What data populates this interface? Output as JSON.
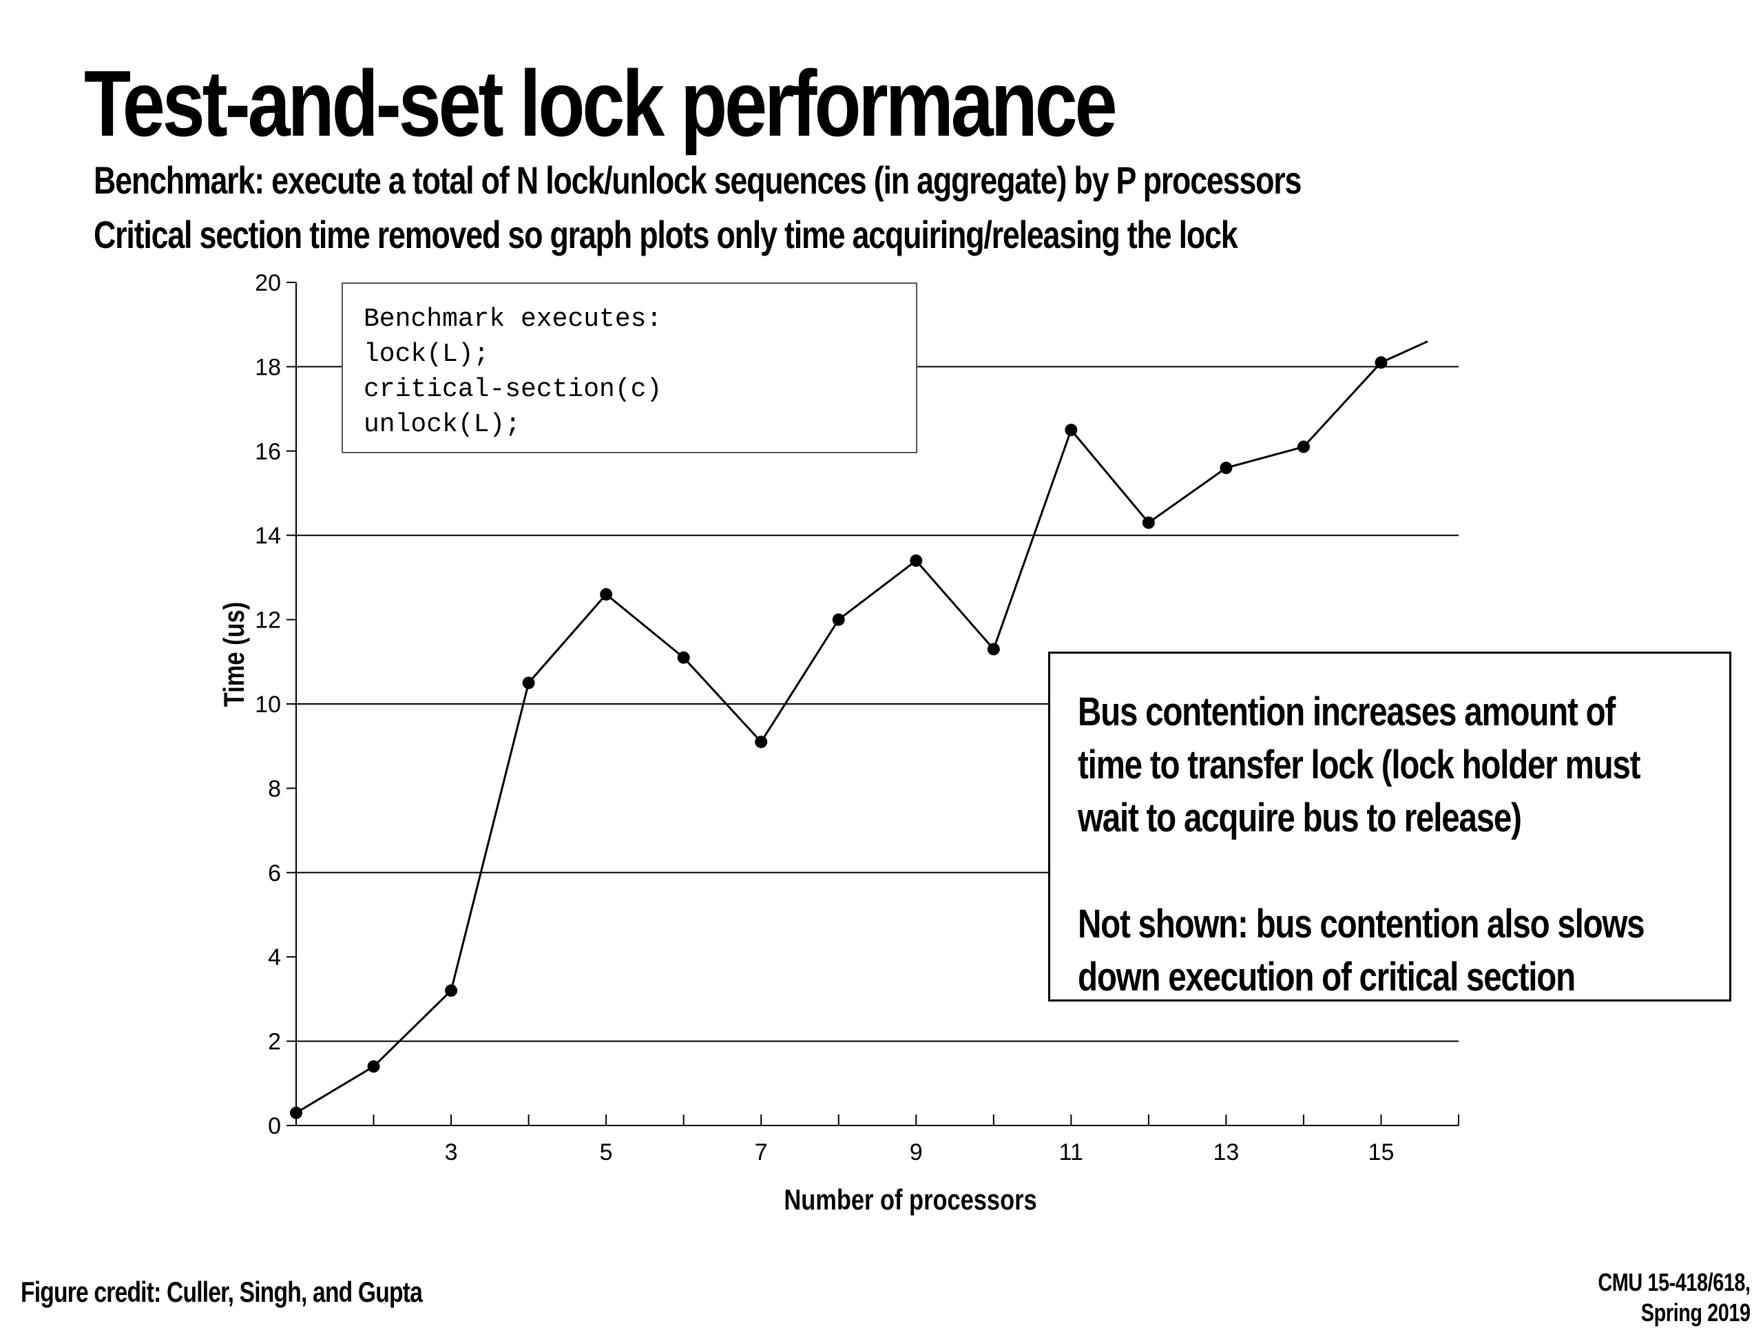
{
  "slide": {
    "title": "Test-and-set lock performance",
    "subtitle_lines": [
      "Benchmark: execute a total of N lock/unlock sequences (in aggregate) by P processors",
      "Critical section time removed so graph plots only time acquiring/releasing the lock"
    ],
    "code_box": {
      "lines": [
        "Benchmark executes:",
        "lock(L);",
        "critical-section(c)",
        "unlock(L);"
      ]
    },
    "note_box": {
      "paragraph_1": [
        "Bus contention increases amount of",
        "time to transfer lock (lock holder must",
        "wait to acquire bus to release)"
      ],
      "paragraph_2": [
        "Not shown: bus contention also slows",
        "down execution of critical section"
      ]
    },
    "credit": "Figure credit: Culler, Singh, and Gupta",
    "course": [
      "CMU 15-418/618,",
      "Spring 2019"
    ]
  },
  "chart_data": {
    "type": "line",
    "xlabel": "Number of processors",
    "ylabel": "Time (us)",
    "xlim": [
      1,
      16
    ],
    "ylim": [
      0,
      20
    ],
    "x_ticks": [
      3,
      5,
      7,
      9,
      11,
      13,
      15
    ],
    "y_ticks": [
      0,
      2,
      4,
      6,
      8,
      10,
      12,
      14,
      16,
      18,
      20
    ],
    "grid_y": [
      2,
      6,
      10,
      14,
      18
    ],
    "series": [
      {
        "x": [
          1,
          2,
          3,
          4,
          5,
          6,
          7,
          8,
          9,
          10,
          11,
          12,
          13,
          14,
          15,
          15.6
        ],
        "y": [
          0.3,
          1.4,
          3.2,
          10.5,
          12.6,
          11.1,
          9.1,
          12.0,
          13.4,
          11.3,
          16.5,
          14.3,
          15.6,
          16.1,
          18.1,
          18.6
        ],
        "markers": [
          true,
          true,
          true,
          true,
          true,
          true,
          true,
          true,
          true,
          true,
          true,
          true,
          true,
          true,
          true,
          false
        ]
      }
    ]
  }
}
